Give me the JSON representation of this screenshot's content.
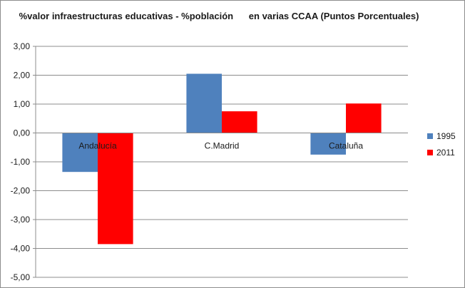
{
  "chart_data": {
    "type": "bar",
    "title": "%valor infraestructuras educativas - %población      en varias CCAA (Puntos Porcentuales)",
    "xlabel": "",
    "ylabel": "",
    "categories": [
      "Andalucía",
      "C.Madrid",
      "Cataluña"
    ],
    "series": [
      {
        "name": "1995",
        "color": "#4f81bd",
        "values": [
          -1.35,
          2.05,
          -0.75
        ]
      },
      {
        "name": "2011",
        "color": "#ff0000",
        "values": [
          -3.85,
          0.75,
          1.02
        ]
      }
    ],
    "ylim": [
      -5,
      3
    ],
    "yticks": [
      "3,00",
      "2,00",
      "1,00",
      "0,00",
      "-1,00",
      "-2,00",
      "-3,00",
      "-4,00",
      "-5,00"
    ],
    "grid": true,
    "legend_position": "right"
  }
}
